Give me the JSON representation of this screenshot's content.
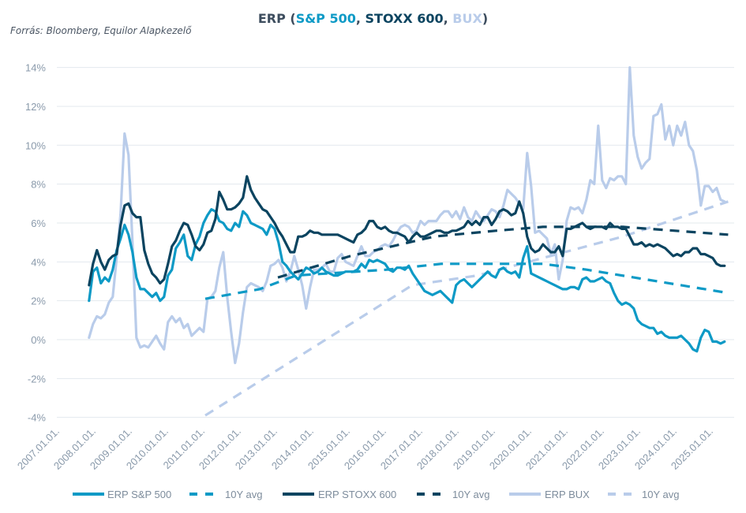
{
  "colors": {
    "sp500": "#0e9ac6",
    "stoxx600": "#0b4460",
    "bux": "#b9ccea",
    "grid": "#e3e8ee",
    "axis_text": "#8a9aab"
  },
  "chart_data": {
    "type": "line",
    "title_parts": [
      "ERP (",
      "S&P 500",
      ", ",
      "STOXX 600",
      ", ",
      "BUX",
      ")"
    ],
    "source": "Forrás: Bloomberg, Equilor Alapkezelő",
    "xlabel": "",
    "ylabel": "",
    "ylim": [
      -4,
      14
    ],
    "xlim": [
      2007,
      2025.4
    ],
    "y_ticks": [
      -4,
      -2,
      0,
      2,
      4,
      6,
      8,
      10,
      12,
      14
    ],
    "y_tick_labels": [
      "-4%",
      "-2%",
      "0%",
      "2%",
      "4%",
      "6%",
      "8%",
      "10%",
      "12%",
      "14%"
    ],
    "x_ticks": [
      2007,
      2008,
      2009,
      2010,
      2011,
      2012,
      2013,
      2014,
      2015,
      2016,
      2017,
      2018,
      2019,
      2020,
      2021,
      2022,
      2023,
      2024,
      2025
    ],
    "x_tick_labels": [
      "2007.01.01.",
      "2008.01.01.",
      "2009.01.01.",
      "2010.01.01.",
      "2011.01.01.",
      "2012.01.01.",
      "2013.01.01.",
      "2014.01.01.",
      "2015.01.01.",
      "2016.01.01.",
      "2017.01.01.",
      "2018.01.01.",
      "2019.01.01.",
      "2020.01.01.",
      "2021.01.01.",
      "2022.01.01.",
      "2023.01.01.",
      "2024.01.01.",
      "2025.01.01."
    ],
    "grid": true,
    "legend_position": "bottom",
    "series_start_year": 2007.8,
    "series_step_years": 0.1087,
    "series": [
      {
        "name": "ERP S&P 500",
        "key": "sp500",
        "style": "solid",
        "values": [
          2.0,
          3.5,
          3.7,
          2.9,
          3.2,
          3.0,
          3.6,
          4.6,
          5.2,
          5.9,
          5.4,
          4.5,
          3.2,
          2.6,
          2.6,
          2.4,
          2.2,
          2.4,
          2.0,
          2.2,
          3.3,
          3.6,
          4.7,
          5.0,
          5.4,
          4.3,
          4.1,
          4.9,
          5.3,
          6.0,
          6.4,
          6.7,
          6.6,
          6.1,
          6.0,
          5.7,
          5.6,
          6.0,
          5.8,
          6.6,
          6.4,
          6.0,
          5.9,
          5.8,
          5.7,
          5.4,
          5.9,
          5.7,
          5.0,
          4.0,
          3.8,
          3.5,
          3.3,
          3.1,
          3.4,
          3.7,
          3.6,
          3.4,
          3.5,
          3.7,
          3.5,
          3.4,
          3.3,
          3.3,
          3.4,
          3.5,
          3.5,
          3.5,
          3.6,
          3.9,
          3.7,
          4.1,
          4.0,
          4.1,
          4.0,
          3.9,
          3.6,
          3.5,
          3.7,
          3.7,
          3.6,
          3.8,
          3.4,
          3.1,
          2.8,
          2.5,
          2.4,
          2.3,
          2.4,
          2.5,
          2.3,
          2.1,
          1.9,
          2.8,
          3.0,
          3.1,
          2.9,
          2.7,
          2.9,
          3.1,
          3.3,
          3.5,
          3.3,
          3.2,
          3.6,
          3.7,
          3.5,
          3.4,
          3.5,
          3.2,
          4.2,
          4.8,
          3.4,
          3.3,
          3.2,
          3.1,
          3.0,
          2.9,
          2.8,
          2.7,
          2.6,
          2.6,
          2.7,
          2.7,
          2.6,
          3.1,
          3.2,
          3.0,
          3.0,
          3.1,
          3.2,
          3.0,
          2.9,
          2.4,
          2.0,
          1.8,
          1.9,
          1.8,
          1.6,
          1.0,
          0.8,
          0.7,
          0.6,
          0.6,
          0.3,
          0.4,
          0.2,
          0.1,
          0.1,
          0.1,
          0.2,
          0.0,
          -0.2,
          -0.5,
          -0.6,
          0.1,
          0.5,
          0.4,
          -0.1,
          -0.1,
          -0.2,
          -0.1
        ]
      },
      {
        "name": "10Y avg",
        "key": "sp500",
        "style": "dashed",
        "points": [
          [
            2011.0,
            2.1
          ],
          [
            2012.5,
            2.6
          ],
          [
            2013.5,
            3.3
          ],
          [
            2016.0,
            3.6
          ],
          [
            2017.5,
            3.9
          ],
          [
            2020.3,
            3.9
          ],
          [
            2021.5,
            3.6
          ],
          [
            2025.4,
            2.4
          ]
        ]
      },
      {
        "name": "ERP STOXX 600",
        "key": "stoxx600",
        "style": "solid",
        "values": [
          2.8,
          3.9,
          4.6,
          4.0,
          3.6,
          4.1,
          4.3,
          4.4,
          5.9,
          6.9,
          7.0,
          6.5,
          6.3,
          6.3,
          4.6,
          3.9,
          3.4,
          3.2,
          2.9,
          3.1,
          3.9,
          4.8,
          5.1,
          5.6,
          6.0,
          5.9,
          5.4,
          4.8,
          4.6,
          4.9,
          5.5,
          5.6,
          6.2,
          7.6,
          7.2,
          6.7,
          6.7,
          6.8,
          7.0,
          7.3,
          8.4,
          7.7,
          7.3,
          7.0,
          6.7,
          6.6,
          6.3,
          6.0,
          5.6,
          5.3,
          4.9,
          4.5,
          4.5,
          5.3,
          5.3,
          5.4,
          5.6,
          5.5,
          5.5,
          5.4,
          5.4,
          5.4,
          5.4,
          5.4,
          5.3,
          5.2,
          5.1,
          5.0,
          5.4,
          5.5,
          5.7,
          6.1,
          6.1,
          5.8,
          5.7,
          5.8,
          5.6,
          5.5,
          5.5,
          5.4,
          5.3,
          5.0,
          5.3,
          5.5,
          5.3,
          5.3,
          5.4,
          5.5,
          5.6,
          5.6,
          5.5,
          5.5,
          5.6,
          5.6,
          5.7,
          5.8,
          6.1,
          5.9,
          6.1,
          5.9,
          6.3,
          6.3,
          5.9,
          6.2,
          6.6,
          6.7,
          6.6,
          6.4,
          6.5,
          7.1,
          6.5,
          5.3,
          4.7,
          4.5,
          4.6,
          4.9,
          4.7,
          4.5,
          4.5,
          4.8,
          4.3,
          5.7,
          5.7,
          5.8,
          5.9,
          6.0,
          5.8,
          5.7,
          5.8,
          5.8,
          5.8,
          5.7,
          6.0,
          5.8,
          5.8,
          5.7,
          5.7,
          5.3,
          4.9,
          4.9,
          5.0,
          4.8,
          4.9,
          4.8,
          4.9,
          4.8,
          4.7,
          4.5,
          4.3,
          4.4,
          4.3,
          4.5,
          4.5,
          4.7,
          4.7,
          4.4,
          4.4,
          4.3,
          4.2,
          3.9,
          3.8,
          3.8
        ]
      },
      {
        "name": "10Y avg",
        "key": "stoxx600",
        "style": "dashed",
        "points": [
          [
            2013.0,
            3.2
          ],
          [
            2015.0,
            4.3
          ],
          [
            2017.3,
            5.3
          ],
          [
            2019.0,
            5.6
          ],
          [
            2020.3,
            5.8
          ],
          [
            2022.5,
            5.8
          ],
          [
            2025.4,
            5.4
          ]
        ]
      },
      {
        "name": "ERP BUX",
        "key": "bux",
        "style": "solid",
        "values": [
          0.1,
          0.8,
          1.2,
          1.1,
          1.3,
          1.9,
          2.2,
          4.2,
          6.5,
          10.6,
          9.5,
          5.0,
          0.1,
          -0.4,
          -0.3,
          -0.4,
          -0.1,
          0.2,
          -0.2,
          -0.5,
          0.9,
          1.2,
          0.9,
          1.1,
          0.6,
          0.8,
          0.2,
          0.4,
          0.6,
          0.4,
          2.1,
          2.2,
          2.5,
          3.7,
          4.5,
          2.2,
          0.4,
          -1.2,
          -0.2,
          1.4,
          2.7,
          2.9,
          2.8,
          2.7,
          2.5,
          3.0,
          3.8,
          3.9,
          4.1,
          3.7,
          3.0,
          3.5,
          4.3,
          3.6,
          2.8,
          1.6,
          2.7,
          3.6,
          3.6,
          3.7,
          3.9,
          3.5,
          3.5,
          4.2,
          4.4,
          4.0,
          3.9,
          3.8,
          4.3,
          4.8,
          4.3,
          4.3,
          4.5,
          4.6,
          4.8,
          4.9,
          4.8,
          5.1,
          5.5,
          5.8,
          5.9,
          5.8,
          5.5,
          5.6,
          6.1,
          5.9,
          6.1,
          6.1,
          6.1,
          6.4,
          6.6,
          6.6,
          6.3,
          6.6,
          6.2,
          6.8,
          6.3,
          6.1,
          6.6,
          6.3,
          6.1,
          6.4,
          6.7,
          6.6,
          6.3,
          6.9,
          7.7,
          7.5,
          7.3,
          7.0,
          6.7,
          9.6,
          7.9,
          5.5,
          5.6,
          5.4,
          5.2,
          4.4,
          4.9,
          3.1,
          4.1,
          6.1,
          6.8,
          6.7,
          6.8,
          6.5,
          7.2,
          8.2,
          8.0,
          11.0,
          8.2,
          7.8,
          8.3,
          8.2,
          8.4,
          8.4,
          8.0,
          14.0,
          10.5,
          9.4,
          8.8,
          9.1,
          9.3,
          11.5,
          11.6,
          12.1,
          10.3,
          11.0,
          10.0,
          11.0,
          10.5,
          11.2,
          10.0,
          9.7,
          8.7,
          6.9,
          7.9,
          7.9,
          7.6,
          7.8,
          7.2,
          7.1
        ]
      },
      {
        "name": "10Y avg",
        "key": "bux",
        "style": "dashed",
        "points": [
          [
            2011.0,
            -3.9
          ],
          [
            2016.7,
            2.8
          ],
          [
            2018.5,
            3.3
          ],
          [
            2020.5,
            4.3
          ],
          [
            2022.5,
            5.3
          ],
          [
            2025.4,
            7.1
          ]
        ]
      }
    ]
  }
}
